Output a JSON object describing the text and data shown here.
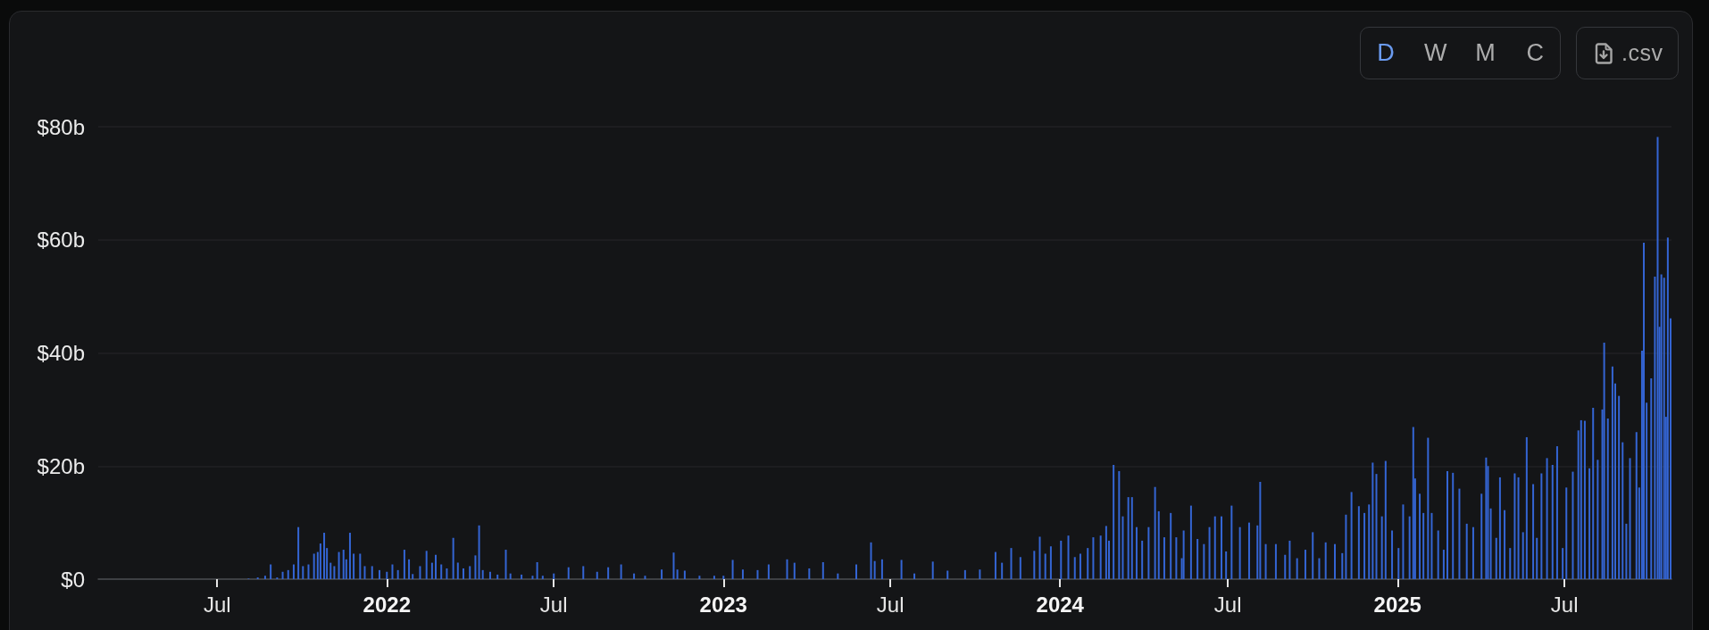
{
  "chart_data": {
    "type": "bar",
    "color": "#3465d4",
    "x": [
      "2021-08-04",
      "2021-08-14",
      "2021-08-22",
      "2021-08-28",
      "2021-09-04",
      "2021-09-10",
      "2021-09-16",
      "2021-09-22",
      "2021-09-27",
      "2021-10-02",
      "2021-10-08",
      "2021-10-14",
      "2021-10-18",
      "2021-10-21",
      "2021-10-25",
      "2021-10-28",
      "2021-11-01",
      "2021-11-05",
      "2021-11-10",
      "2021-11-15",
      "2021-11-18",
      "2021-11-22",
      "2021-11-26",
      "2021-12-03",
      "2021-12-08",
      "2021-12-16",
      "2021-12-24",
      "2022-01-01",
      "2022-01-07",
      "2022-01-13",
      "2022-01-20",
      "2022-01-25",
      "2022-01-29",
      "2022-02-06",
      "2022-02-13",
      "2022-02-19",
      "2022-02-23",
      "2022-03-01",
      "2022-03-07",
      "2022-03-14",
      "2022-03-19",
      "2022-03-25",
      "2022-04-01",
      "2022-04-07",
      "2022-04-11",
      "2022-04-15",
      "2022-04-23",
      "2022-05-01",
      "2022-05-10",
      "2022-05-15",
      "2022-05-27",
      "2022-06-08",
      "2022-06-13",
      "2022-06-19",
      "2022-07-01",
      "2022-07-17",
      "2022-08-02",
      "2022-08-17",
      "2022-08-29",
      "2022-09-12",
      "2022-09-26",
      "2022-10-08",
      "2022-10-26",
      "2022-11-08",
      "2022-11-12",
      "2022-11-20",
      "2022-12-06",
      "2022-12-22",
      "2023-01-01",
      "2023-01-11",
      "2023-01-22",
      "2023-02-07",
      "2023-02-19",
      "2023-03-11",
      "2023-03-19",
      "2023-04-04",
      "2023-04-19",
      "2023-05-05",
      "2023-05-25",
      "2023-06-10",
      "2023-06-14",
      "2023-06-22",
      "2023-07-13",
      "2023-07-27",
      "2023-08-16",
      "2023-09-01",
      "2023-09-20",
      "2023-10-06",
      "2023-10-23",
      "2023-10-30",
      "2023-11-09",
      "2023-11-19",
      "2023-12-04",
      "2023-12-10",
      "2023-12-16",
      "2023-12-22",
      "2024-01-02",
      "2024-01-10",
      "2024-01-17",
      "2024-01-23",
      "2024-01-31",
      "2024-02-06",
      "2024-02-14",
      "2024-02-20",
      "2024-02-23",
      "2024-02-28",
      "2024-03-05",
      "2024-03-09",
      "2024-03-15",
      "2024-03-19",
      "2024-03-24",
      "2024-03-30",
      "2024-04-06",
      "2024-04-13",
      "2024-04-17",
      "2024-04-23",
      "2024-04-30",
      "2024-05-06",
      "2024-05-12",
      "2024-05-14",
      "2024-05-22",
      "2024-05-29",
      "2024-06-05",
      "2024-06-11",
      "2024-06-17",
      "2024-06-24",
      "2024-06-29",
      "2024-07-05",
      "2024-07-14",
      "2024-07-24",
      "2024-08-02",
      "2024-08-05",
      "2024-08-11",
      "2024-08-22",
      "2024-09-01",
      "2024-09-06",
      "2024-09-14",
      "2024-09-23",
      "2024-10-01",
      "2024-10-08",
      "2024-10-15",
      "2024-10-25",
      "2024-11-02",
      "2024-11-06",
      "2024-11-12",
      "2024-11-20",
      "2024-11-26",
      "2024-12-01",
      "2024-12-05",
      "2024-12-09",
      "2024-12-15",
      "2024-12-19",
      "2024-12-26",
      "2025-01-02",
      "2025-01-07",
      "2025-01-14",
      "2025-01-18",
      "2025-01-20",
      "2025-01-25",
      "2025-01-29",
      "2025-02-03",
      "2025-02-07",
      "2025-02-14",
      "2025-02-20",
      "2025-02-24",
      "2025-03-02",
      "2025-03-09",
      "2025-03-17",
      "2025-03-24",
      "2025-04-02",
      "2025-04-07",
      "2025-04-09",
      "2025-04-12",
      "2025-04-18",
      "2025-04-22",
      "2025-04-27",
      "2025-05-03",
      "2025-05-08",
      "2025-05-12",
      "2025-05-17",
      "2025-05-21",
      "2025-05-28",
      "2025-06-01",
      "2025-06-06",
      "2025-06-12",
      "2025-06-18",
      "2025-06-23",
      "2025-06-29",
      "2025-07-03",
      "2025-07-10",
      "2025-07-16",
      "2025-07-19",
      "2025-07-23",
      "2025-07-28",
      "2025-08-01",
      "2025-08-06",
      "2025-08-11",
      "2025-08-13",
      "2025-08-17",
      "2025-08-22",
      "2025-08-25",
      "2025-08-29",
      "2025-09-02",
      "2025-09-06",
      "2025-09-10",
      "2025-09-17",
      "2025-09-20",
      "2025-09-23",
      "2025-09-25",
      "2025-09-28",
      "2025-10-03",
      "2025-10-07",
      "2025-10-10",
      "2025-10-12",
      "2025-10-14",
      "2025-10-17",
      "2025-10-19",
      "2025-10-21",
      "2025-10-24"
    ],
    "values": [
      0.1,
      0.3,
      0.6,
      2.6,
      0.3,
      1.3,
      1.6,
      2.6,
      9.2,
      2.3,
      2.6,
      4.5,
      4.8,
      6.3,
      8.2,
      5.5,
      2.9,
      2.3,
      4.8,
      5.2,
      3.5,
      8.2,
      4.5,
      4.5,
      2.3,
      2.3,
      1.6,
      1.3,
      2.6,
      1.6,
      5.2,
      3.5,
      0.9,
      2.3,
      5.0,
      2.9,
      4.3,
      2.6,
      1.9,
      7.3,
      2.9,
      1.9,
      2.3,
      4.2,
      9.5,
      1.6,
      1.3,
      0.8,
      5.2,
      1.0,
      0.8,
      0.6,
      3.0,
      0.6,
      1.0,
      2.1,
      2.3,
      1.3,
      2.1,
      2.6,
      1.0,
      0.6,
      1.7,
      4.7,
      1.7,
      1.5,
      0.6,
      0.6,
      0.6,
      3.4,
      1.7,
      1.6,
      2.6,
      3.5,
      2.9,
      1.9,
      3.0,
      1.0,
      2.6,
      6.5,
      3.2,
      3.5,
      3.4,
      1.0,
      3.1,
      1.5,
      1.6,
      1.7,
      4.8,
      2.9,
      5.5,
      3.9,
      5.0,
      7.5,
      4.5,
      5.8,
      6.8,
      7.7,
      3.9,
      4.5,
      5.5,
      7.4,
      7.7,
      9.4,
      6.8,
      20.2,
      19.1,
      11.1,
      14.5,
      14.5,
      9.2,
      6.8,
      9.2,
      16.3,
      12.0,
      7.4,
      11.7,
      7.4,
      3.7,
      8.6,
      13.0,
      7.1,
      6.2,
      9.2,
      11.1,
      11.1,
      4.9,
      13.0,
      9.2,
      10.0,
      9.5,
      17.2,
      6.2,
      6.2,
      4.3,
      6.8,
      3.7,
      5.2,
      8.3,
      3.7,
      6.5,
      6.2,
      4.6,
      11.4,
      15.4,
      12.9,
      11.7,
      13.2,
      20.6,
      18.6,
      11.1,
      20.9,
      8.6,
      5.5,
      13.2,
      11.1,
      26.9,
      17.8,
      15.1,
      11.7,
      25.0,
      11.7,
      8.6,
      5.2,
      19.1,
      18.8,
      16.0,
      9.8,
      9.2,
      15.1,
      21.5,
      20.0,
      12.5,
      7.3,
      18.0,
      12.2,
      5.5,
      18.7,
      18.0,
      8.3,
      25.1,
      16.8,
      7.3,
      18.7,
      21.4,
      20.2,
      23.5,
      5.5,
      16.2,
      19.0,
      26.3,
      28.1,
      28.0,
      19.6,
      30.3,
      21.1,
      30.0,
      41.8,
      28.4,
      37.6,
      34.6,
      32.4,
      24.2,
      9.8,
      21.4,
      26.0,
      16.2,
      40.4,
      59.5,
      31.2,
      35.5,
      53.5,
      78.2,
      44.6,
      53.9,
      53.3,
      28.7,
      60.4,
      46.1
    ],
    "xlim": [
      "2021-02-22",
      "2025-10-25"
    ],
    "xticks": [
      {
        "value": "2021-07-01",
        "label": "Jul"
      },
      {
        "value": "2022-01-01",
        "label": "2022"
      },
      {
        "value": "2022-07-01",
        "label": "Jul"
      },
      {
        "value": "2023-01-01",
        "label": "2023"
      },
      {
        "value": "2023-07-01",
        "label": "Jul"
      },
      {
        "value": "2024-01-01",
        "label": "2024"
      },
      {
        "value": "2024-07-01",
        "label": "Jul"
      },
      {
        "value": "2025-01-01",
        "label": "2025"
      },
      {
        "value": "2025-07-01",
        "label": "Jul"
      }
    ],
    "ylim": [
      0,
      80
    ],
    "yticks": [
      {
        "value": 0,
        "label": "$0"
      },
      {
        "value": 20,
        "label": "$20b"
      },
      {
        "value": 40,
        "label": "$40b"
      },
      {
        "value": 60,
        "label": "$60b"
      },
      {
        "value": 80,
        "label": "$80b"
      }
    ],
    "grid": "y",
    "annotations": [
      "D",
      "W",
      "M",
      "C",
      ".csv"
    ]
  }
}
